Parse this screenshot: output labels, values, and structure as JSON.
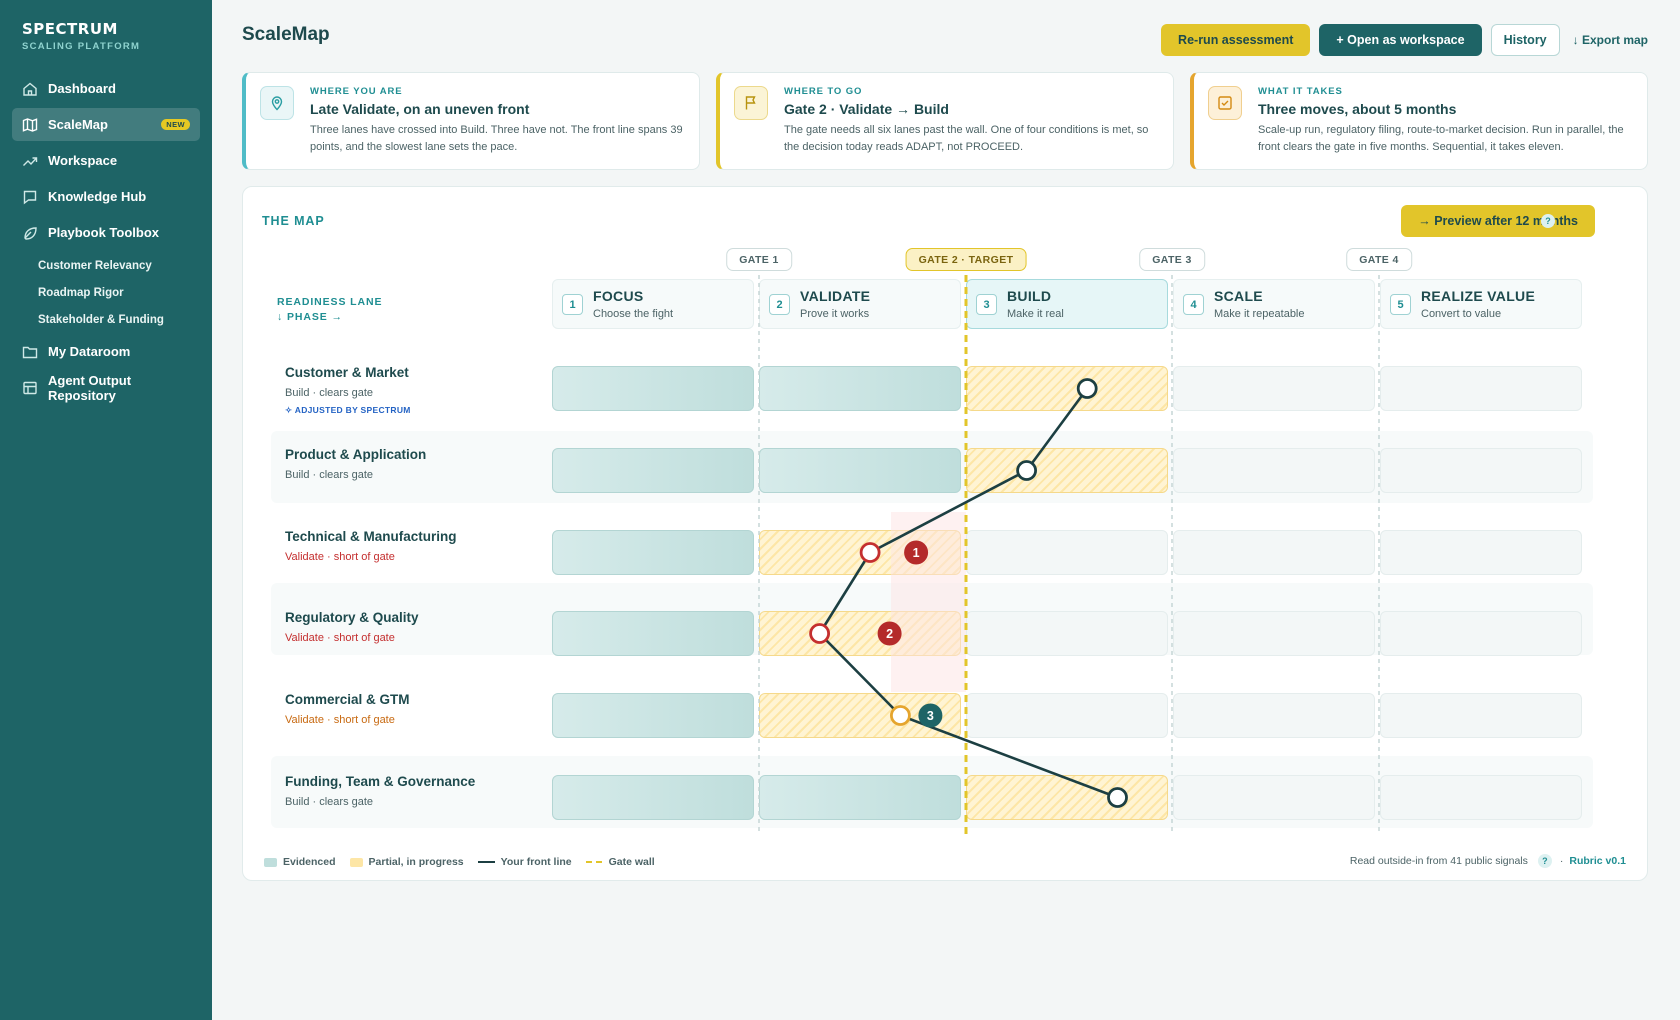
{
  "app": {
    "brand_name": "SPECTRUM",
    "brand_sub": "SCALING PLATFORM"
  },
  "nav": {
    "items": [
      {
        "label": "Dashboard",
        "icon": "home-icon"
      },
      {
        "label": "ScaleMap",
        "icon": "map-icon",
        "badge": "NEW",
        "active": true
      },
      {
        "label": "Workspace",
        "icon": "trend-icon"
      },
      {
        "label": "Knowledge Hub",
        "icon": "chat-icon"
      },
      {
        "label": "Playbook Toolbox",
        "icon": "leaf-icon"
      }
    ],
    "sub_items": [
      "Customer Relevancy",
      "Roadmap Rigor",
      "Stakeholder & Funding"
    ],
    "bottom_items": [
      {
        "label": "My Dataroom",
        "icon": "folder-icon"
      },
      {
        "label": "Agent Output Repository",
        "icon": "table-icon"
      }
    ]
  },
  "header": {
    "title": "ScaleMap",
    "rerun": "Re-run assessment",
    "open_workspace": "+  Open as workspace",
    "history": "History",
    "export": "↓ Export map"
  },
  "cards": [
    {
      "eyebrow": "WHERE YOU ARE",
      "title": "Late Validate, on an uneven front",
      "body": "Three lanes have crossed into Build. Three have not. The front line spans 39 points, and the slowest lane sets the pace.",
      "icon": "location-icon"
    },
    {
      "eyebrow": "WHERE TO GO",
      "title": "Gate 2 · Validate → Build",
      "body": "The gate needs all six lanes past the wall. One of four conditions is met, so the decision today reads ADAPT, not PROCEED.",
      "icon": "flag-icon"
    },
    {
      "eyebrow": "WHAT IT TAKES",
      "title": "Three moves, about 5 months",
      "body": "Scale-up run, regulatory filing, route-to-market decision. Run in parallel, the front clears the gate in five months. Sequential, it takes eleven.",
      "icon": "checklist-icon"
    }
  ],
  "map": {
    "title": "THE MAP",
    "preview": "→  Preview after 12 months",
    "help": "?",
    "lane_header_1": "READINESS LANE",
    "lane_header_2": "↓ PHASE →",
    "gates": [
      "GATE 1",
      "GATE 2 · TARGET",
      "GATE 3",
      "GATE 4"
    ],
    "phases": [
      {
        "num": "1",
        "name": "FOCUS",
        "desc": "Choose the fight"
      },
      {
        "num": "2",
        "name": "VALIDATE",
        "desc": "Prove it works"
      },
      {
        "num": "3",
        "name": "BUILD",
        "desc": "Make it real",
        "current": true
      },
      {
        "num": "4",
        "name": "SCALE",
        "desc": "Make it repeatable"
      },
      {
        "num": "5",
        "name": "REALIZE VALUE",
        "desc": "Convert to value"
      }
    ],
    "lanes": [
      {
        "name": "Customer & Market",
        "status": "Build · clears gate",
        "status_tone": "ok",
        "adjusted": "✧ ADJUSTED BY SPECTRUM",
        "cells": [
          "ev",
          "ev",
          "pa",
          "em",
          "em"
        ],
        "front_line": 2.6,
        "marker_tone": "ok"
      },
      {
        "name": "Product & Application",
        "status": "Build · clears gate",
        "status_tone": "ok",
        "cells": [
          "ev",
          "ev",
          "pa",
          "em",
          "em"
        ],
        "front_line": 2.3,
        "marker_tone": "ok"
      },
      {
        "name": "Technical & Manufacturing",
        "status": "Validate · short of gate",
        "status_tone": "red",
        "cells": [
          "ev",
          "pa",
          "em",
          "em",
          "em"
        ],
        "front_line": 1.55,
        "marker_tone": "red",
        "move": "1"
      },
      {
        "name": "Regulatory & Quality",
        "status": "Validate · short of gate",
        "status_tone": "red",
        "cells": [
          "ev",
          "pa",
          "em",
          "em",
          "em"
        ],
        "front_line": 1.3,
        "marker_tone": "red",
        "move": "2"
      },
      {
        "name": "Commercial & GTM",
        "status": "Validate · short of gate",
        "status_tone": "amber",
        "cells": [
          "ev",
          "pa",
          "em",
          "em",
          "em"
        ],
        "front_line": 1.7,
        "marker_tone": "amber",
        "move": "3"
      },
      {
        "name": "Funding, Team & Governance",
        "status": "Build · clears gate",
        "status_tone": "ok",
        "cells": [
          "ev",
          "ev",
          "pa",
          "em",
          "em"
        ],
        "front_line": 2.75,
        "marker_tone": "ok"
      }
    ],
    "legend": {
      "evidenced": "Evidenced",
      "partial": "Partial, in progress",
      "front_line": "Your front line",
      "gate_wall": "Gate wall"
    },
    "footer_note": "Read outside-in from 41 public signals",
    "rubric": "Rubric v0.1"
  },
  "colors": {
    "sidebar": "#1e6466",
    "accent_yellow": "#e2c52a",
    "front_line": "#1c3f42",
    "red": "#c42f2f",
    "amber": "#e5a52e"
  }
}
